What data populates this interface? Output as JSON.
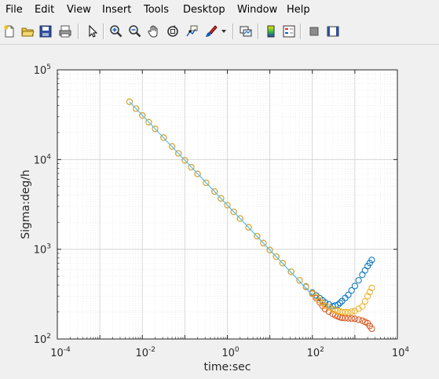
{
  "menu": {
    "file": "File",
    "edit": "Edit",
    "view": "View",
    "insert": "Insert",
    "tools": "Tools",
    "desktop": "Desktop",
    "window": "Window",
    "help": "Help"
  },
  "toolbar": {
    "icons": [
      "new-figure-icon",
      "open-file-icon",
      "save-icon",
      "print-icon",
      "pointer-icon",
      "zoom-in-icon",
      "zoom-out-icon",
      "pan-icon",
      "rotate-3d-icon",
      "data-cursor-icon",
      "brush-icon",
      "link-plot-icon",
      "colorbar-icon",
      "legend-icon",
      "hide-plot-tools-icon",
      "show-plot-tools-icon"
    ]
  },
  "colors": {
    "series1": "#0072BD",
    "series2": "#D95319",
    "series3": "#EDB120",
    "fit_line": "#4DBEEE",
    "grid": "#d9d9d9"
  },
  "chart_data": {
    "type": "scatter",
    "title": "",
    "xlabel": "time:sec",
    "ylabel": "Sigma:deg/h",
    "xscale": "log",
    "yscale": "log",
    "xlim": [
      0.0001,
      10000
    ],
    "ylim": [
      100,
      100000
    ],
    "xticks": [
      {
        "base": "10",
        "exp": "-4"
      },
      {
        "base": "10",
        "exp": "-2"
      },
      {
        "base": "10",
        "exp": "0"
      },
      {
        "base": "10",
        "exp": "2"
      },
      {
        "base": "10",
        "exp": "4"
      }
    ],
    "yticks": [
      {
        "base": "10",
        "exp": "2"
      },
      {
        "base": "10",
        "exp": "3"
      },
      {
        "base": "10",
        "exp": "4"
      },
      {
        "base": "10",
        "exp": "5"
      }
    ],
    "grid": true,
    "minor_grid": true,
    "marker": "open-circle",
    "series": [
      {
        "color": "#0072BD",
        "points": [
          [
            0.005,
            44000
          ],
          [
            0.01,
            31000
          ],
          [
            0.02,
            22000
          ],
          [
            0.05,
            14000
          ],
          [
            0.1,
            9800
          ],
          [
            0.2,
            6900
          ],
          [
            0.5,
            4400
          ],
          [
            1,
            3100
          ],
          [
            2,
            2200
          ],
          [
            5,
            1400
          ],
          [
            10,
            980
          ],
          [
            20,
            700
          ],
          [
            50,
            450
          ],
          [
            100,
            330
          ],
          [
            150,
            285
          ],
          [
            200,
            255
          ],
          [
            300,
            232
          ],
          [
            400,
            240
          ],
          [
            500,
            265
          ],
          [
            700,
            310
          ],
          [
            1000,
            390
          ],
          [
            1500,
            520
          ],
          [
            2000,
            650
          ],
          [
            2500,
            760
          ]
        ]
      },
      {
        "color": "#D95319",
        "points": [
          [
            0.005,
            44000
          ],
          [
            0.01,
            31000
          ],
          [
            0.02,
            22000
          ],
          [
            0.05,
            14000
          ],
          [
            0.1,
            9800
          ],
          [
            0.2,
            6900
          ],
          [
            0.5,
            4400
          ],
          [
            1,
            3100
          ],
          [
            2,
            2200
          ],
          [
            5,
            1400
          ],
          [
            10,
            980
          ],
          [
            20,
            700
          ],
          [
            50,
            450
          ],
          [
            100,
            320
          ],
          [
            150,
            255
          ],
          [
            200,
            215
          ],
          [
            300,
            190
          ],
          [
            400,
            178
          ],
          [
            500,
            172
          ],
          [
            700,
            170
          ],
          [
            1000,
            168
          ],
          [
            1500,
            160
          ],
          [
            2000,
            150
          ],
          [
            2500,
            130
          ]
        ]
      },
      {
        "color": "#EDB120",
        "points": [
          [
            0.005,
            44000
          ],
          [
            0.01,
            31000
          ],
          [
            0.02,
            22000
          ],
          [
            0.05,
            14000
          ],
          [
            0.1,
            9800
          ],
          [
            0.2,
            6900
          ],
          [
            0.5,
            4400
          ],
          [
            1,
            3100
          ],
          [
            2,
            2200
          ],
          [
            5,
            1400
          ],
          [
            10,
            980
          ],
          [
            20,
            700
          ],
          [
            50,
            450
          ],
          [
            100,
            325
          ],
          [
            150,
            270
          ],
          [
            200,
            235
          ],
          [
            300,
            215
          ],
          [
            400,
            205
          ],
          [
            500,
            200
          ],
          [
            700,
            198
          ],
          [
            1000,
            205
          ],
          [
            1500,
            230
          ],
          [
            2000,
            300
          ],
          [
            2500,
            370
          ]
        ]
      }
    ],
    "fit_line": {
      "color": "#4DBEEE",
      "points": [
        [
          0.005,
          44000
        ],
        [
          100,
          310
        ]
      ]
    }
  }
}
